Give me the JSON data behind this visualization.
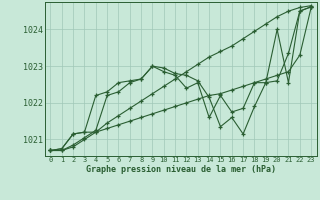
{
  "xlabel": "Graphe pression niveau de la mer (hPa)",
  "x_ticks": [
    0,
    1,
    2,
    3,
    4,
    5,
    6,
    7,
    8,
    9,
    10,
    11,
    12,
    13,
    14,
    15,
    16,
    17,
    18,
    19,
    20,
    21,
    22,
    23
  ],
  "y_ticks": [
    1021,
    1022,
    1023,
    1024
  ],
  "ylim": [
    1020.55,
    1024.75
  ],
  "xlim": [
    -0.5,
    23.5
  ],
  "bg_color": "#c8e8d8",
  "grid_color": "#a0c8b8",
  "line_color": "#2a5e32",
  "lines": [
    [
      1020.7,
      1020.7,
      1020.8,
      1021.0,
      1021.2,
      1021.45,
      1021.65,
      1021.85,
      1022.05,
      1022.25,
      1022.45,
      1022.65,
      1022.85,
      1023.05,
      1023.25,
      1023.4,
      1023.55,
      1023.75,
      1023.95,
      1024.15,
      1024.35,
      1024.5,
      1024.6,
      1024.65
    ],
    [
      1020.7,
      1020.7,
      1020.85,
      1021.05,
      1021.25,
      1022.2,
      1022.3,
      1022.55,
      1022.65,
      1023.0,
      1022.95,
      1022.8,
      1022.75,
      1022.6,
      1022.15,
      1021.35,
      1021.6,
      1021.15,
      1021.9,
      1022.55,
      1024.0,
      1022.55,
      1024.5,
      1024.62
    ],
    [
      1020.7,
      1020.75,
      1021.15,
      1021.2,
      1022.2,
      1022.3,
      1022.55,
      1022.6,
      1022.65,
      1023.0,
      1022.85,
      1022.75,
      1022.4,
      1022.55,
      1021.6,
      1022.2,
      1021.75,
      1021.85,
      1022.55,
      1022.55,
      1022.6,
      1023.35,
      1024.5,
      1024.62
    ],
    [
      1020.7,
      1020.75,
      1021.15,
      1021.2,
      1021.2,
      1021.3,
      1021.4,
      1021.5,
      1021.6,
      1021.7,
      1021.8,
      1021.9,
      1022.0,
      1022.1,
      1022.2,
      1022.25,
      1022.35,
      1022.45,
      1022.55,
      1022.65,
      1022.75,
      1022.85,
      1023.3,
      1024.6
    ]
  ]
}
